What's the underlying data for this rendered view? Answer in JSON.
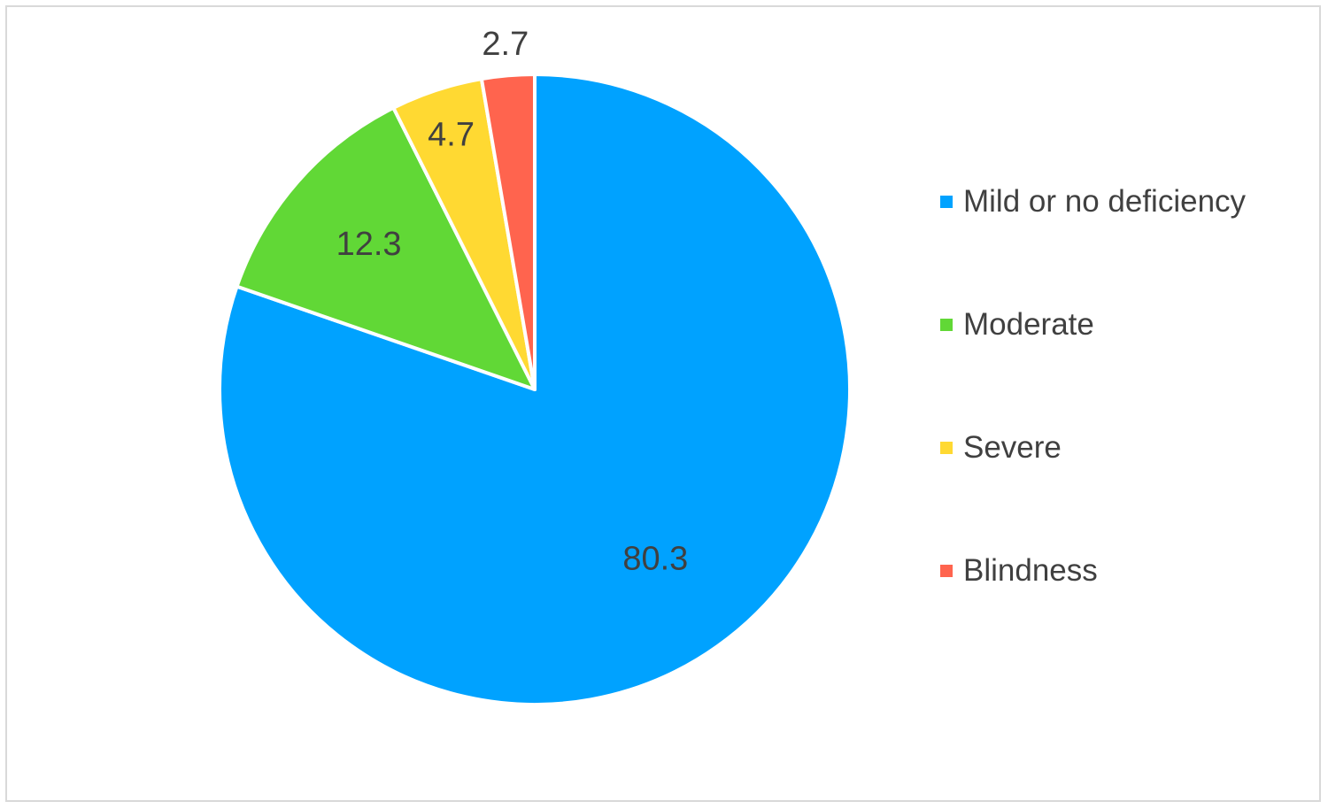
{
  "chart_data": {
    "type": "pie",
    "categories": [
      "Mild or no deficiency",
      "Moderate",
      "Severe",
      "Blindness"
    ],
    "values": [
      80.3,
      12.3,
      4.7,
      2.7
    ],
    "data_labels": [
      "80.3",
      "12.3",
      "4.7",
      "2.7"
    ],
    "colors": [
      "#00A2FF",
      "#61D836",
      "#FFD932",
      "#FF644E"
    ],
    "legend_position": "right",
    "start_angle": "12 o'clock, clockwise"
  }
}
